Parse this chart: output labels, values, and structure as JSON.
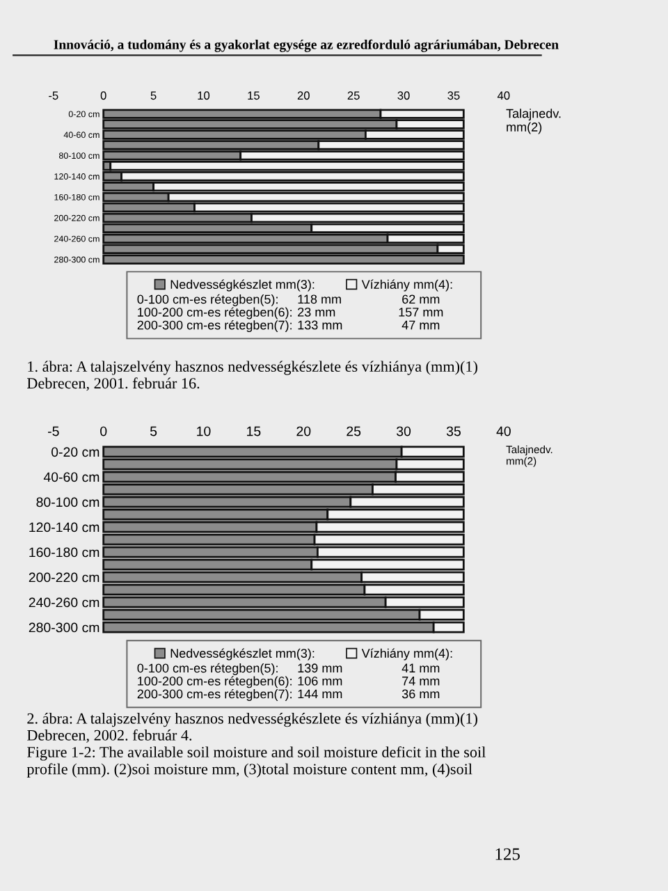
{
  "chart_data": [
    {
      "type": "bar",
      "orientation": "horizontal",
      "stacked": true,
      "title": "Innováció, a tudomány és a gyakorlat egysége az ezredforduló agráriumában, Debrecen",
      "xlabel": "Talajnedv. mm(2)",
      "categories": [
        "0-20 cm",
        null,
        "40-60 cm",
        null,
        "80-100 cm",
        null,
        "120-140 cm",
        null,
        "160-180 cm",
        null,
        "200-220 cm",
        null,
        "240-260 cm",
        null,
        "280-300 cm"
      ],
      "series": [
        {
          "name": "Nedvességkészlet mm(3):",
          "color": "#8c8c8c",
          "values": [
            27.7,
            29.3,
            26.2,
            21.5,
            13.7,
            0.7,
            1.8,
            5.0,
            6.5,
            9.1,
            14.8,
            20.8,
            28.4,
            33.4,
            36.0
          ]
        },
        {
          "name": "Vízhiány mm(4):",
          "color": "#f2f2f2",
          "values": [
            8.3,
            6.7,
            9.8,
            14.5,
            22.3,
            35.3,
            34.2,
            31.0,
            29.5,
            26.9,
            21.2,
            15.2,
            7.6,
            2.6,
            null
          ]
        }
      ],
      "xlim": [
        -5,
        40
      ],
      "xticks": [
        -5,
        0,
        5,
        10,
        15,
        20,
        25,
        30,
        35,
        40
      ],
      "grid": false,
      "legend": "bottom",
      "annotations": [
        "0-100 cm-es rétegben(5):",
        "118 mm",
        "62 mm",
        "100-200 cm-es rétegben(6):",
        "23 mm",
        "157 mm",
        "200-300 cm-es rétegben(7):",
        "133 mm",
        "47 mm",
        "1. ábra: A talajszelvény hasznos nedvességkészlete és vízhiánya (mm)(1)\nDebrecen, 2001. február 16."
      ]
    },
    {
      "type": "bar",
      "orientation": "horizontal",
      "stacked": true,
      "xlabel": "Talajnedv. mm(2)",
      "categories": [
        "0-20 cm",
        null,
        "40-60 cm",
        null,
        "80-100 cm",
        null,
        "120-140 cm",
        null,
        "160-180 cm",
        null,
        "200-220 cm",
        null,
        "240-260 cm",
        null,
        "280-300 cm"
      ],
      "series": [
        {
          "name": "Nedvességkészlet mm(3):",
          "color": "#8c8c8c",
          "values": [
            29.8,
            29.3,
            29.2,
            26.9,
            24.7,
            22.4,
            21.3,
            21.1,
            21.4,
            20.8,
            25.8,
            26.1,
            28.2,
            31.6,
            33.0
          ]
        },
        {
          "name": "Vízhiány mm(4):",
          "color": "#f2f2f2",
          "values": [
            6.2,
            6.7,
            6.8,
            9.1,
            11.3,
            13.6,
            14.7,
            14.9,
            14.6,
            15.2,
            10.2,
            9.9,
            7.8,
            4.4,
            3.0
          ]
        }
      ],
      "xlim": [
        -5,
        40
      ],
      "xticks": [
        -5,
        0,
        5,
        10,
        15,
        20,
        25,
        30,
        35,
        40
      ],
      "grid": false,
      "legend": "bottom",
      "annotations": [
        "0-100 cm-es rétegben(5):",
        "139 mm",
        "41 mm",
        "100-200 cm-es rétegben(6):",
        "106 mm",
        "74 mm",
        "200-300 cm-es rétegben(7):",
        "144 mm",
        "36 mm",
        "2. ábra: A talajszelvény hasznos nedvességkészlete és vízhiánya (mm)(1)\nDebrecen, 2002. február 4.\nFigure 1-2: The available soil moisture and soil moisture deficit in the soil\nprofile (mm). (2)soi moisture mm, (3)total moisture content mm, (4)soil",
        "125"
      ]
    }
  ]
}
